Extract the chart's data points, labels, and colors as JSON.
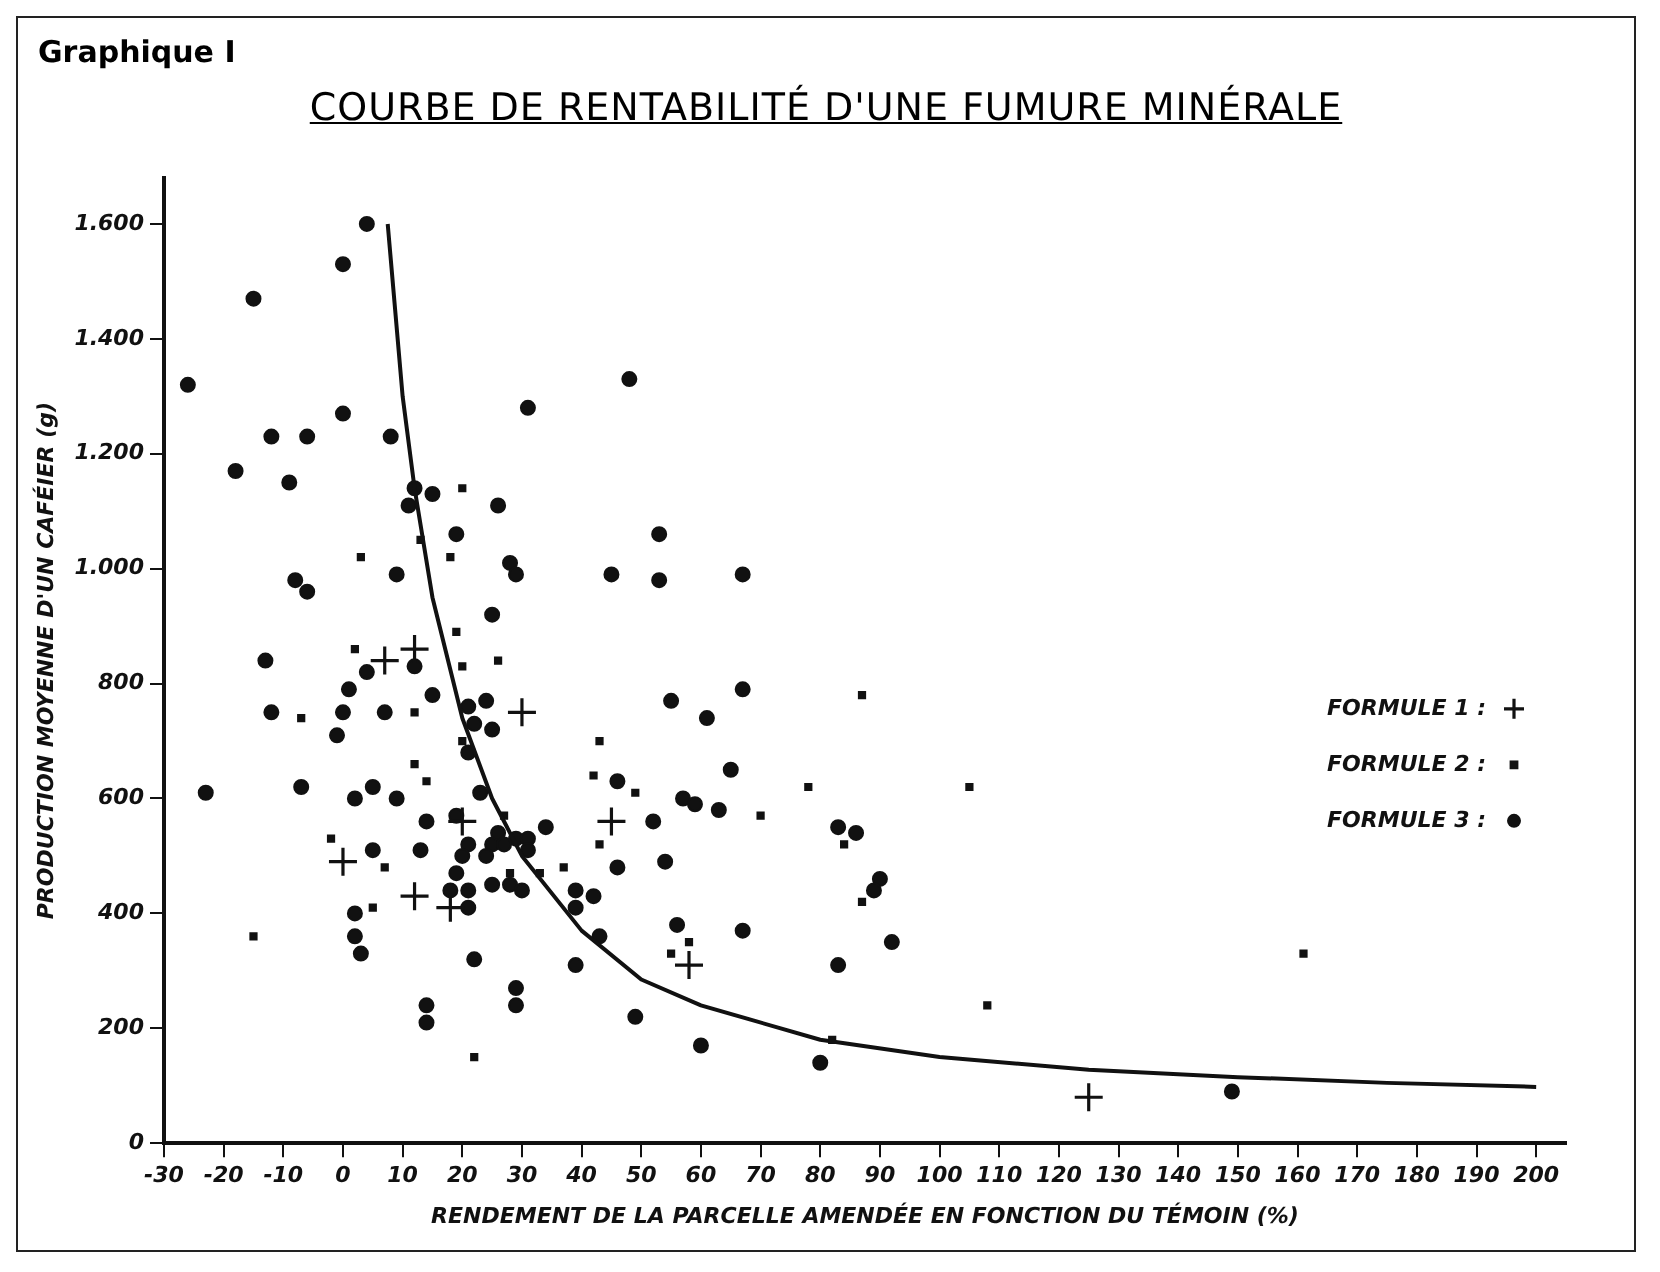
{
  "chart_data": {
    "type": "scatter",
    "subtitle": "Graphique I",
    "title": "COURBE DE RENTABILITÉ D'UNE FUMURE MINÉRALE",
    "xlabel": "RENDEMENT DE LA PARCELLE AMENDÉE EN FONCTION DU TÉMOIN (%)",
    "ylabel": "PRODUCTION MOYENNE D'UN CAFÉIER (g)",
    "xlim": [
      -30,
      205
    ],
    "xticks": [
      -30,
      -20,
      -10,
      0,
      10,
      20,
      30,
      40,
      50,
      60,
      70,
      80,
      90,
      100,
      110,
      120,
      130,
      140,
      150,
      160,
      170,
      180,
      190,
      200
    ],
    "ylim": [
      0,
      1680
    ],
    "yticks": [
      0,
      200,
      400,
      600,
      800,
      {
        "value": 1000,
        "label": "1.000"
      },
      {
        "value": 1200,
        "label": "1.200"
      },
      {
        "value": 1400,
        "label": "1.400"
      },
      {
        "value": 1600,
        "label": "1.600"
      }
    ],
    "grid": false,
    "legend": "right",
    "series": [
      {
        "name": "FORMULE 1 :",
        "color": "#111111",
        "marker": "cross",
        "x": [
          12,
          7,
          30,
          20,
          45,
          0,
          12,
          18,
          58,
          125
        ],
        "values": [
          860,
          840,
          750,
          560,
          560,
          490,
          430,
          410,
          310,
          80
        ]
      },
      {
        "name": "FORMULE 2 :",
        "color": "#111111",
        "marker": "square",
        "x": [
          20,
          3,
          13,
          18,
          19,
          2,
          26,
          20,
          -7,
          12,
          43,
          12,
          14,
          42,
          49,
          27,
          -2,
          43,
          7,
          28,
          33,
          37,
          5,
          -15,
          22,
          20,
          78,
          70,
          105,
          84,
          87,
          58,
          55,
          108,
          82,
          161,
          87
        ],
        "values": [
          1140,
          1020,
          1050,
          1020,
          890,
          860,
          840,
          830,
          740,
          750,
          700,
          660,
          630,
          640,
          610,
          570,
          530,
          520,
          480,
          470,
          470,
          480,
          410,
          360,
          150,
          700,
          620,
          570,
          620,
          520,
          420,
          350,
          330,
          240,
          180,
          330,
          780
        ]
      },
      {
        "name": "FORMULE 3 :",
        "color": "#111111",
        "marker": "circle",
        "x": [
          4,
          0,
          -15,
          -26,
          48,
          31,
          -12,
          -6,
          0,
          8,
          -18,
          -9,
          12,
          11,
          15,
          26,
          19,
          28,
          29,
          9,
          -8,
          -6,
          45,
          25,
          -13,
          12,
          4,
          1,
          15,
          -12,
          0,
          7,
          -1,
          21,
          24,
          22,
          25,
          21,
          23,
          -23,
          -7,
          2,
          5,
          9,
          14,
          19,
          34,
          46,
          13,
          21,
          25,
          26,
          29,
          31,
          27,
          5,
          20,
          24,
          31,
          19,
          46,
          18,
          21,
          25,
          28,
          30,
          39,
          42,
          39,
          2,
          21,
          2,
          43,
          3,
          22,
          39,
          29,
          29,
          14,
          14,
          49,
          53,
          53,
          67,
          55,
          67,
          61,
          65,
          57,
          59,
          63,
          52,
          54,
          83,
          86,
          90,
          89,
          56,
          67,
          92,
          83,
          60,
          80,
          149
        ],
        "values": [
          1600,
          1530,
          1470,
          1320,
          1330,
          1280,
          1230,
          1230,
          1270,
          1230,
          1170,
          1150,
          1140,
          1110,
          1130,
          1110,
          1060,
          1010,
          990,
          990,
          980,
          960,
          990,
          920,
          840,
          830,
          820,
          790,
          780,
          750,
          750,
          750,
          710,
          760,
          770,
          730,
          720,
          680,
          610,
          610,
          620,
          600,
          620,
          600,
          560,
          570,
          550,
          630,
          510,
          520,
          520,
          540,
          530,
          530,
          520,
          510,
          500,
          500,
          510,
          470,
          480,
          440,
          440,
          450,
          450,
          440,
          440,
          430,
          410,
          400,
          410,
          360,
          360,
          330,
          320,
          310,
          270,
          240,
          240,
          210,
          220,
          1060,
          980,
          990,
          770,
          790,
          740,
          650,
          600,
          590,
          580,
          560,
          490,
          550,
          540,
          460,
          440,
          380,
          370,
          350,
          310,
          170,
          140,
          90
        ]
      },
      {
        "type": "line",
        "color": "#111111",
        "marker": "none",
        "x": [
          7.5,
          10,
          12,
          15,
          20,
          25,
          30,
          40,
          50,
          60,
          80,
          100,
          125,
          150,
          175,
          200
        ],
        "values": [
          1600,
          1300,
          1140,
          950,
          740,
          600,
          500,
          370,
          285,
          240,
          180,
          150,
          128,
          115,
          105,
          98
        ]
      }
    ]
  }
}
